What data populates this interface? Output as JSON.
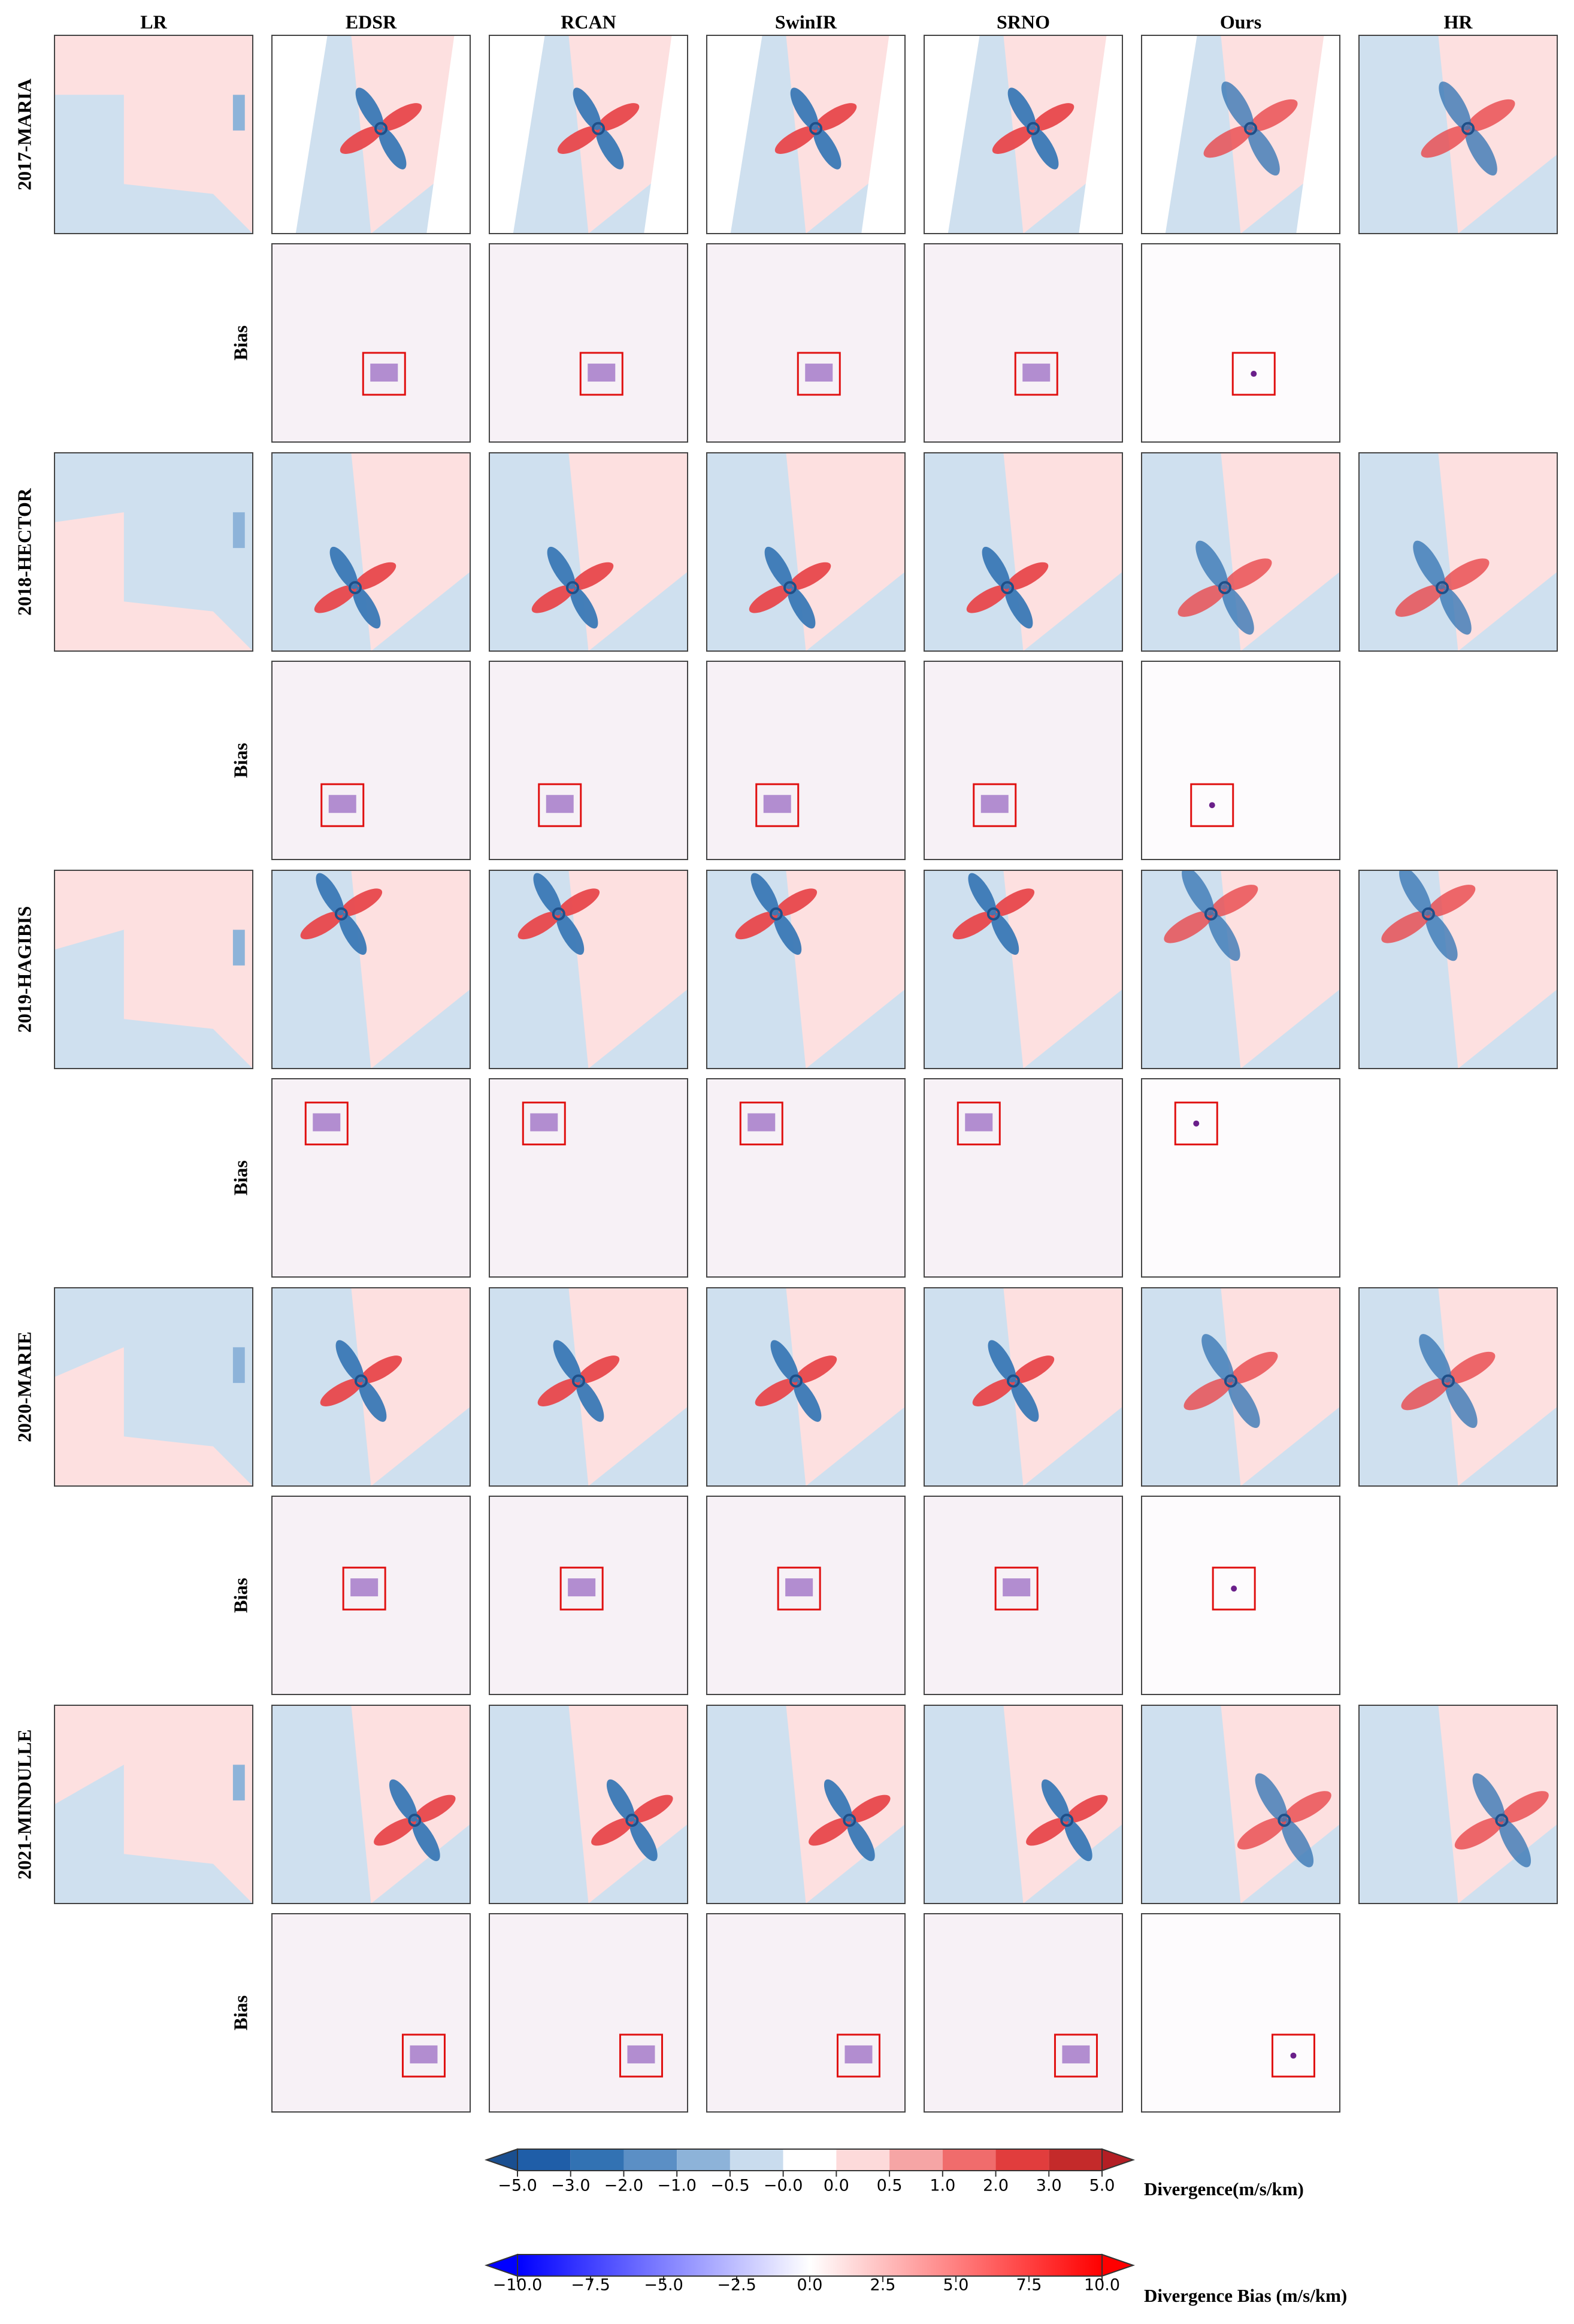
{
  "columns": [
    "LR",
    "EDSR",
    "RCAN",
    "SwinIR",
    "SRNO",
    "Ours",
    "HR"
  ],
  "rows": [
    {
      "label": "2017-MARIA",
      "bias": "Bias"
    },
    {
      "label": "2018-HECTOR",
      "bias": "Bias"
    },
    {
      "label": "2019-HAGIBIS",
      "bias": "Bias"
    },
    {
      "label": "2020-MARIE",
      "bias": "Bias"
    },
    {
      "label": "2021-MINDULLE",
      "bias": "Bias"
    }
  ],
  "colorbars": [
    {
      "label": "Divergence(m/s/km)",
      "ticks": [
        {
          "value": -5.0,
          "label": "−5.0"
        },
        {
          "value": -3.0,
          "label": "−3.0"
        },
        {
          "value": -2.0,
          "label": "−2.0"
        },
        {
          "value": -1.0,
          "label": "−1.0"
        },
        {
          "value": -0.5,
          "label": "−0.5"
        },
        {
          "value": -0.0,
          "label": "−0.0"
        },
        {
          "value": 0.0,
          "label": "0.0"
        },
        0.5,
        {
          "value": 1.0,
          "label": "1.0"
        },
        {
          "value": 2.0,
          "label": "2.0"
        },
        {
          "value": 3.0,
          "label": "3.0"
        },
        {
          "value": 5.0,
          "label": "5.0"
        }
      ],
      "colors": [
        "#1f5ea8",
        "#3272b3",
        "#5b8fc5",
        "#8db3d9",
        "#c9dcee",
        "#ffffff",
        "#fddada",
        "#f6a5a5",
        "#f06c6c",
        "#e13d3d",
        "#c42a2a"
      ],
      "extend_colors": [
        "#1a4f90",
        "#b41e24"
      ]
    },
    {
      "label": "Divergence Bias (m/s/km)",
      "lim": [
        -10,
        10
      ],
      "ticks": [
        {
          "value": -10.0,
          "label": "−10.0"
        },
        {
          "value": -7.5,
          "label": "−7.5"
        },
        {
          "value": -5.0,
          "label": "−5.0"
        },
        {
          "value": -2.5,
          "label": "−2.5"
        },
        {
          "value": 0.0,
          "label": "0.0"
        },
        2.5,
        {
          "value": 5.0,
          "label": "5.0"
        },
        7.5,
        {
          "value": 10.0,
          "label": "10.0"
        }
      ],
      "colors": [
        "#0000ff",
        "#ffffff",
        "#ff0000"
      ],
      "extend_colors": [
        "#0000ff",
        "#ff0000"
      ]
    }
  ]
}
